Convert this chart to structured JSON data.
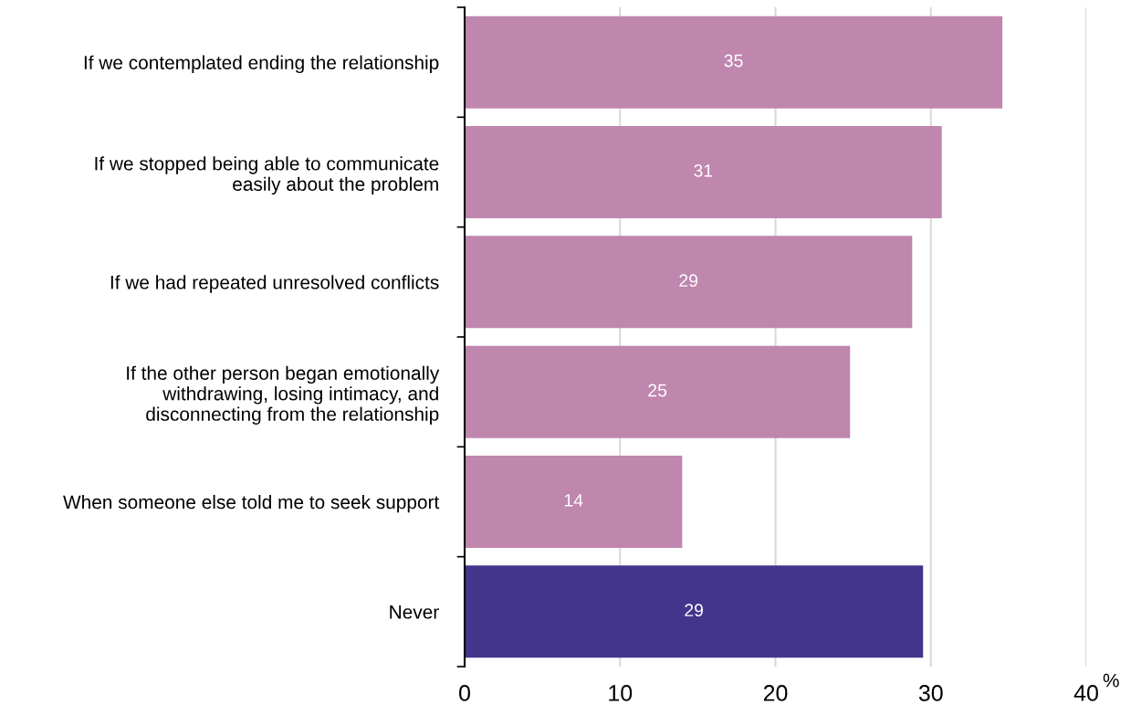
{
  "chart_data": {
    "type": "bar",
    "orientation": "horizontal",
    "categories": [
      "If we contemplated ending the relationship",
      "If we stopped being able to communicate\neasily about the problem",
      "If we had repeated unresolved conflicts",
      "If the other person began emotionally\nwithdrawing, losing intimacy, and\ndisconnecting from the relationship",
      "When someone else told me to seek support",
      "Never"
    ],
    "values": [
      34.6,
      30.7,
      28.8,
      24.8,
      14.0,
      29.5
    ],
    "value_labels": [
      "35",
      "31",
      "29",
      "25",
      "14",
      "29"
    ],
    "colors": [
      "#bf86ae",
      "#bf86ae",
      "#bf86ae",
      "#bf86ae",
      "#bf86ae",
      "#44358c"
    ],
    "xlabel": "%",
    "xlim": [
      0,
      40
    ],
    "xticks": [
      0,
      10,
      20,
      30,
      40
    ],
    "grid": "x"
  }
}
